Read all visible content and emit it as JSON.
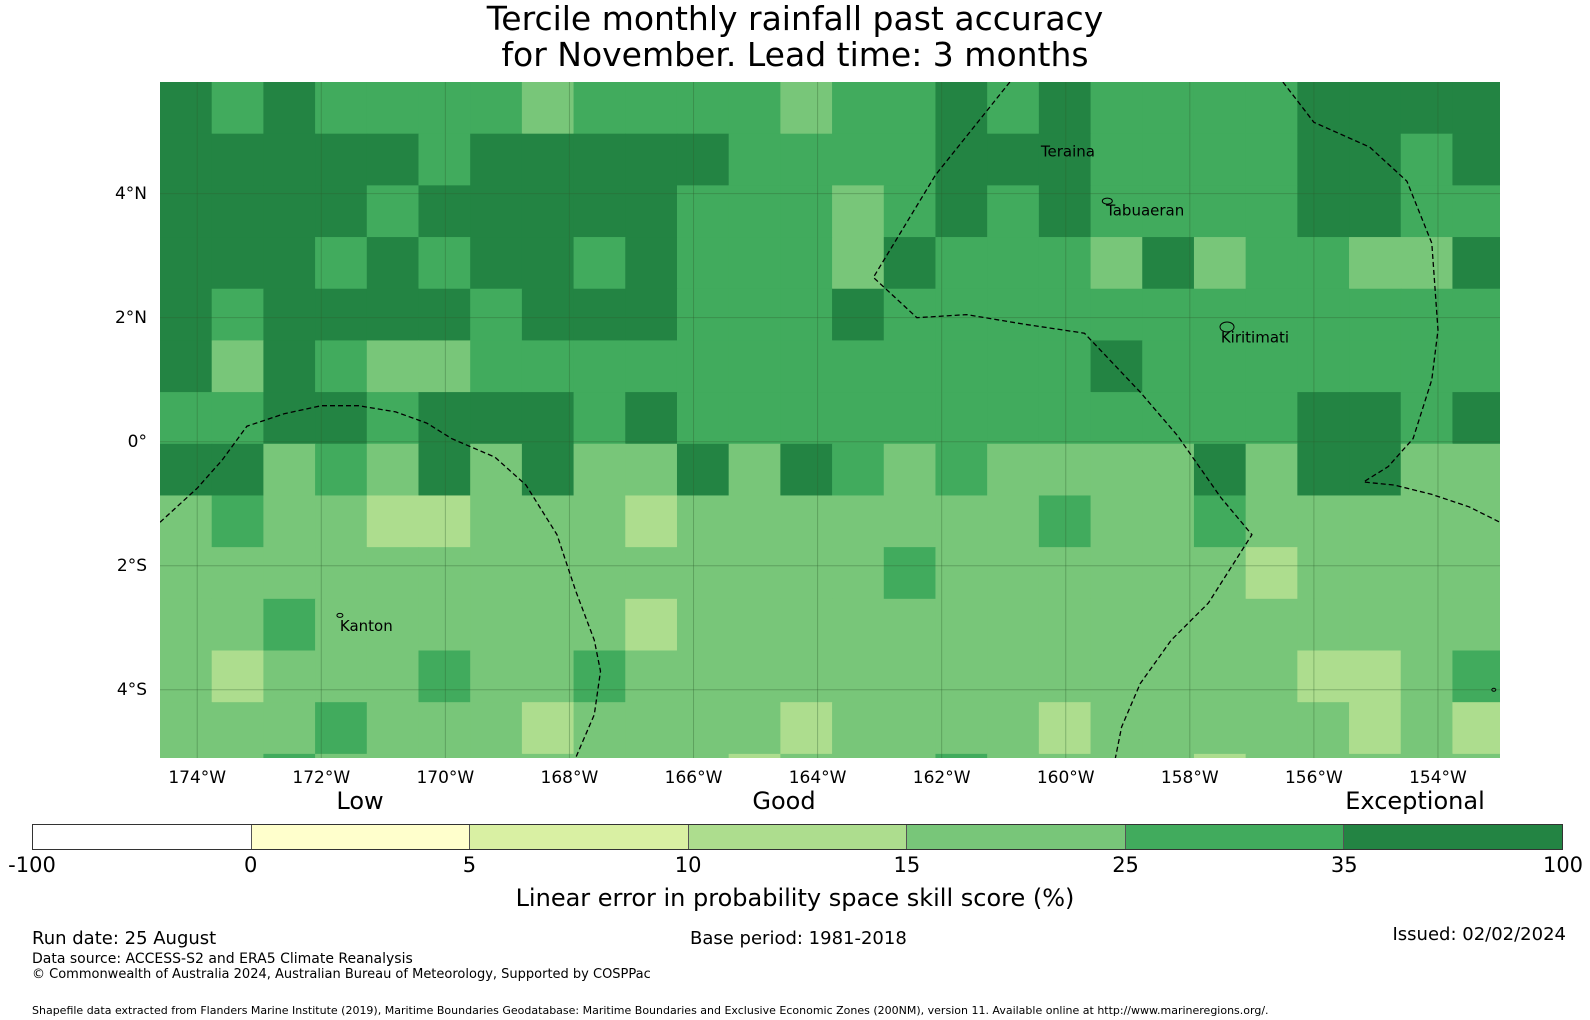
{
  "title_line1": "Tercile monthly rainfall past accuracy",
  "title_line2": "for November. Lead time: 3 months",
  "map": {
    "lon_range": [
      -174.6,
      -153.0
    ],
    "lat_range": [
      -5.1,
      5.8
    ],
    "grid_step_deg": 0.833333,
    "colors": [
      "#ffffff",
      "#ffffcc",
      "#d9f0a3",
      "#addd8e",
      "#78c679",
      "#41ab5d",
      "#238443"
    ],
    "lat_labels": [
      {
        "lat": 4,
        "text": "4°N"
      },
      {
        "lat": 2,
        "text": "2°N"
      },
      {
        "lat": 0,
        "text": "0°"
      },
      {
        "lat": -2,
        "text": "2°S"
      },
      {
        "lat": -4,
        "text": "4°S"
      }
    ],
    "lon_labels": [
      {
        "lon": -174,
        "text": "174°W"
      },
      {
        "lon": -172,
        "text": "172°W"
      },
      {
        "lon": -170,
        "text": "170°W"
      },
      {
        "lon": -168,
        "text": "168°W"
      },
      {
        "lon": -166,
        "text": "166°W"
      },
      {
        "lon": -164,
        "text": "164°W"
      },
      {
        "lon": -162,
        "text": "162°W"
      },
      {
        "lon": -160,
        "text": "160°W"
      },
      {
        "lon": -158,
        "text": "158°W"
      },
      {
        "lon": -156,
        "text": "156°W"
      },
      {
        "lon": -154,
        "text": "154°W"
      }
    ],
    "places": [
      {
        "name": "Teraina",
        "lon": -160.4,
        "lat": 4.6
      },
      {
        "name": "Tabuaeran",
        "lon": -159.35,
        "lat": 3.65
      },
      {
        "name": "Kiritimati",
        "lon": -157.5,
        "lat": 1.6
      },
      {
        "name": "Kanton",
        "lon": -171.7,
        "lat": -3.05
      }
    ],
    "eez_boundaries": [
      [
        [
          -174.6,
          -1.3
        ],
        [
          -174.0,
          -0.75
        ],
        [
          -173.6,
          -0.3
        ],
        [
          -173.2,
          0.25
        ],
        [
          -172.6,
          0.45
        ],
        [
          -172.0,
          0.58
        ],
        [
          -171.4,
          0.58
        ],
        [
          -170.8,
          0.48
        ],
        [
          -170.3,
          0.3
        ],
        [
          -169.9,
          0.05
        ],
        [
          -169.2,
          -0.25
        ],
        [
          -168.7,
          -0.7
        ],
        [
          -168.2,
          -1.5
        ],
        [
          -167.9,
          -2.4
        ],
        [
          -167.6,
          -3.2
        ],
        [
          -167.5,
          -3.7
        ],
        [
          -167.6,
          -4.4
        ],
        [
          -167.9,
          -5.1
        ]
      ],
      [
        [
          -160.9,
          5.8
        ],
        [
          -162.1,
          4.3
        ],
        [
          -163.1,
          2.65
        ],
        [
          -162.4,
          2.0
        ],
        [
          -161.6,
          2.05
        ],
        [
          -160.7,
          1.9
        ],
        [
          -159.7,
          1.75
        ],
        [
          -158.8,
          0.8
        ],
        [
          -158.2,
          0.1
        ],
        [
          -157.5,
          -0.9
        ],
        [
          -157.0,
          -1.5
        ],
        [
          -157.7,
          -2.6
        ],
        [
          -158.3,
          -3.2
        ],
        [
          -158.8,
          -3.9
        ],
        [
          -159.1,
          -4.6
        ],
        [
          -159.2,
          -5.1
        ]
      ],
      [
        [
          -156.5,
          5.8
        ],
        [
          -156.0,
          5.15
        ],
        [
          -155.1,
          4.75
        ],
        [
          -154.5,
          4.2
        ],
        [
          -154.1,
          3.2
        ],
        [
          -154.0,
          1.8
        ],
        [
          -154.1,
          1.0
        ],
        [
          -154.4,
          0.05
        ],
        [
          -154.8,
          -0.4
        ],
        [
          -155.2,
          -0.65
        ],
        [
          -154.7,
          -0.7
        ],
        [
          -154.1,
          -0.85
        ],
        [
          -153.5,
          -1.05
        ],
        [
          -153.0,
          -1.3
        ]
      ]
    ]
  },
  "legend": {
    "band_labels": [
      {
        "text": "Low",
        "value": -90
      },
      {
        "text": "Good",
        "value": 10
      },
      {
        "text": "Exceptional",
        "value": 95
      }
    ],
    "ticks": [
      "-100",
      "0",
      "5",
      "10",
      "15",
      "25",
      "35",
      "100"
    ],
    "colors": [
      "#ffffff",
      "#ffffcc",
      "#d9f0a3",
      "#addd8e",
      "#78c679",
      "#41ab5d",
      "#238443"
    ],
    "label": "Linear error in probability space skill score (%)"
  },
  "footer": {
    "run_date": "Run date: 25 August",
    "base_period": "Base period: 1981-2018",
    "issued": "Issued: 02/02/2024",
    "data_source": "Data source: ACCESS-S2 and ERA5 Climate Reanalysis",
    "copyright": "© Commonwealth of Australia 2024, Australian Bureau of Meteorology, Supported by COSPPac",
    "shapefile": "Shapefile data extracted from Flanders Marine Institute (2019), Maritime Boundaries Geodatabase: Maritime Boundaries and Exclusive Economic Zones (200NM), version 11. Available online at http://www.marineregions.org/."
  }
}
